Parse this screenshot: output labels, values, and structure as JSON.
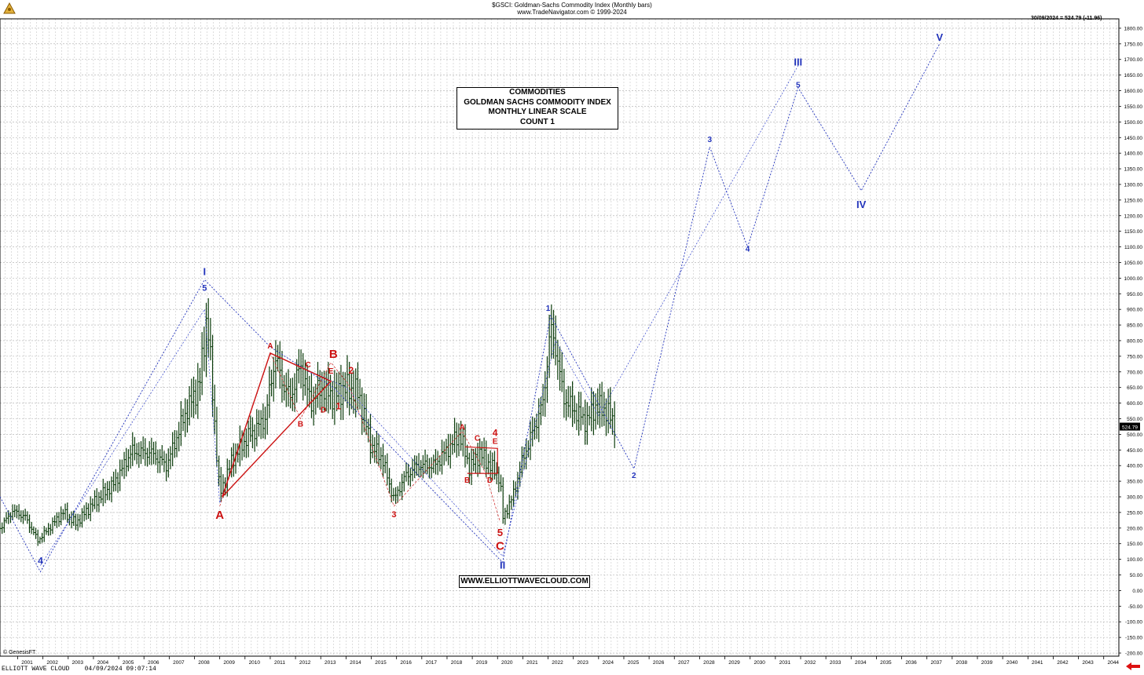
{
  "header": {
    "title": "$GSCI:  Goldman-Sachs Commodity Index  (Monthly bars)",
    "subtitle": "www.TradeNavigator.com © 1999-2024",
    "last_readout": "30/09/2024 = 524.79 (-11.96)"
  },
  "infobox": {
    "lines": [
      "COMMODITIES",
      "GOLDMAN SACHS COMMODITY INDEX",
      "MONTHLY LINEAR SCALE",
      "COUNT 1"
    ]
  },
  "url_box": "WWW.ELLIOTTWAVECLOUD.COM",
  "footer": {
    "left": "ELLIOTT WAVE CLOUD    04/09/2024 09:07:14",
    "credit": "© GenesisFT"
  },
  "chart_data": {
    "type": "ohlc",
    "y_ticks": [
      1800,
      1750,
      1700,
      1650,
      1600,
      1550,
      1500,
      1450,
      1400,
      1350,
      1300,
      1250,
      1200,
      1150,
      1100,
      1050,
      1000,
      950,
      900,
      850,
      800,
      750,
      700,
      650,
      600,
      550,
      500,
      450,
      400,
      350,
      300,
      250,
      200,
      150,
      100,
      50,
      0,
      -50,
      -100,
      -150,
      -200
    ],
    "y_tick_labels": [
      "1800.00",
      "1750.00",
      "1700.00",
      "1650.00",
      "1600.00",
      "1550.00",
      "1500.00",
      "1450.00",
      "1400.00",
      "1350.00",
      "1300.00",
      "1250.00",
      "1200.00",
      "1150.00",
      "1100.00",
      "1050.00",
      "1000.00",
      "950.00",
      "900.00",
      "850.00",
      "800.00",
      "750.00",
      "700.00",
      "650.00",
      "600.00",
      "550.00",
      "500.00",
      "450.00",
      "400.00",
      "350.00",
      "300.00",
      "250.00",
      "200.00",
      "150.00",
      "100.00",
      "50.00",
      "0.00",
      "-50.00",
      "-100.00",
      "-150.00",
      "-200.00"
    ],
    "ylim": [
      -210,
      1830
    ],
    "xlim": [
      2000.3,
      2044.6
    ],
    "x_years": [
      "2001",
      "2002",
      "2003",
      "2004",
      "2005",
      "2006",
      "2007",
      "2008",
      "2009",
      "2010",
      "2011",
      "2012",
      "2013",
      "2014",
      "2015",
      "2016",
      "2017",
      "2018",
      "2019",
      "2020",
      "2021",
      "2022",
      "2023",
      "2024",
      "2025",
      "2026",
      "2027",
      "2028",
      "2029",
      "2030",
      "2031",
      "2032",
      "2033",
      "2034",
      "2035",
      "2036",
      "2037",
      "2038",
      "2039",
      "2040",
      "2041",
      "2042",
      "2043",
      "2044"
    ],
    "price_path": [
      [
        2000.3,
        200
      ],
      [
        2000.8,
        255
      ],
      [
        2001.3,
        235
      ],
      [
        2001.8,
        160
      ],
      [
        2002.3,
        205
      ],
      [
        2002.8,
        250
      ],
      [
        2003.3,
        215
      ],
      [
        2004.0,
        280
      ],
      [
        2004.8,
        340
      ],
      [
        2005.5,
        445
      ],
      [
        2006.3,
        440
      ],
      [
        2006.9,
        400
      ],
      [
        2007.6,
        560
      ],
      [
        2008.2,
        660
      ],
      [
        2008.5,
        885
      ],
      [
        2008.9,
        420
      ],
      [
        2009.0,
        305
      ],
      [
        2009.5,
        420
      ],
      [
        2010.0,
        480
      ],
      [
        2010.8,
        550
      ],
      [
        2011.2,
        750
      ],
      [
        2011.5,
        660
      ],
      [
        2011.8,
        620
      ],
      [
        2012.2,
        720
      ],
      [
        2012.6,
        600
      ],
      [
        2013.0,
        650
      ],
      [
        2013.5,
        620
      ],
      [
        2014.0,
        650
      ],
      [
        2014.5,
        630
      ],
      [
        2015.0,
        460
      ],
      [
        2015.4,
        430
      ],
      [
        2015.9,
        290
      ],
      [
        2016.3,
        360
      ],
      [
        2016.8,
        400
      ],
      [
        2017.5,
        400
      ],
      [
        2018.0,
        450
      ],
      [
        2018.5,
        500
      ],
      [
        2018.9,
        390
      ],
      [
        2019.3,
        440
      ],
      [
        2019.8,
        390
      ],
      [
        2020.1,
        360
      ],
      [
        2020.2,
        230
      ],
      [
        2020.6,
        300
      ],
      [
        2021.0,
        420
      ],
      [
        2021.4,
        510
      ],
      [
        2021.8,
        600
      ],
      [
        2022.1,
        840
      ],
      [
        2022.3,
        780
      ],
      [
        2022.6,
        620
      ],
      [
        2023.0,
        580
      ],
      [
        2023.5,
        540
      ],
      [
        2023.9,
        590
      ],
      [
        2024.3,
        575
      ],
      [
        2024.7,
        525
      ]
    ],
    "last_price": 524.79,
    "last_price_label": "524.79",
    "projection_blue": [
      [
        2000.3,
        300
      ],
      [
        2001.9,
        60
      ],
      [
        2008.4,
        995
      ],
      [
        2011.0,
        780
      ],
      [
        2013.5,
        650
      ],
      [
        2020.2,
        90
      ],
      [
        2022.1,
        880
      ],
      [
        2025.4,
        390
      ],
      [
        2028.4,
        1420
      ],
      [
        2029.9,
        1100
      ],
      [
        2031.9,
        1610
      ],
      [
        2034.4,
        1280
      ],
      [
        2037.5,
        1750
      ]
    ],
    "projection_blue_2": [
      [
        2001.9,
        80
      ],
      [
        2008.4,
        900
      ],
      [
        2009.0,
        280
      ],
      [
        2011.0,
        760
      ],
      [
        2014.0,
        650
      ],
      [
        2020.2,
        110
      ],
      [
        2022.3,
        800
      ],
      [
        2024.0,
        560
      ],
      [
        2031.9,
        1680
      ]
    ],
    "projection_red": [
      [
        2009.0,
        270
      ],
      [
        2011.0,
        760
      ],
      [
        2012.2,
        550
      ],
      [
        2013.4,
        730
      ],
      [
        2014.1,
        660
      ],
      [
        2015.9,
        270
      ],
      [
        2018.6,
        510
      ],
      [
        2019.5,
        380
      ],
      [
        2020.1,
        220
      ]
    ],
    "red_triangle": [
      [
        2009.1,
        300
      ],
      [
        2011.0,
        760
      ],
      [
        2013.4,
        670
      ],
      [
        2009.1,
        300
      ]
    ],
    "red_triangle_2": [
      [
        2018.7,
        460
      ],
      [
        2020.0,
        455
      ],
      [
        2020.0,
        375
      ],
      [
        2018.8,
        375
      ]
    ],
    "labels": [
      {
        "text": "I",
        "x": 2008.4,
        "y": 1010,
        "color": "#2233bb",
        "size": 13
      },
      {
        "text": "5",
        "x": 2008.4,
        "y": 960,
        "color": "#2233bb",
        "size": 11
      },
      {
        "text": "4",
        "x": 2001.9,
        "y": 85,
        "color": "#2233bb",
        "size": 12
      },
      {
        "text": "A",
        "x": 2009.0,
        "y": 230,
        "color": "#cc1111",
        "size": 15
      },
      {
        "text": "A",
        "x": 2011.0,
        "y": 775,
        "color": "#cc1111",
        "size": 10
      },
      {
        "text": "B",
        "x": 2012.2,
        "y": 525,
        "color": "#cc1111",
        "size": 10
      },
      {
        "text": "C",
        "x": 2012.5,
        "y": 715,
        "color": "#cc1111",
        "size": 10
      },
      {
        "text": "D",
        "x": 2013.1,
        "y": 570,
        "color": "#cc1111",
        "size": 10
      },
      {
        "text": "E",
        "x": 2013.4,
        "y": 695,
        "color": "#cc1111",
        "size": 10
      },
      {
        "text": "B",
        "x": 2013.5,
        "y": 745,
        "color": "#cc1111",
        "size": 15
      },
      {
        "text": "1",
        "x": 2013.7,
        "y": 580,
        "color": "#cc1111",
        "size": 12
      },
      {
        "text": "2",
        "x": 2014.2,
        "y": 695,
        "color": "#cc1111",
        "size": 12
      },
      {
        "text": "3",
        "x": 2015.9,
        "y": 235,
        "color": "#cc1111",
        "size": 11
      },
      {
        "text": "A",
        "x": 2018.6,
        "y": 515,
        "color": "#cc1111",
        "size": 10
      },
      {
        "text": "B",
        "x": 2018.8,
        "y": 345,
        "color": "#cc1111",
        "size": 10
      },
      {
        "text": "C",
        "x": 2019.2,
        "y": 480,
        "color": "#cc1111",
        "size": 10
      },
      {
        "text": "D",
        "x": 2019.7,
        "y": 345,
        "color": "#cc1111",
        "size": 10
      },
      {
        "text": "E",
        "x": 2019.9,
        "y": 470,
        "color": "#cc1111",
        "size": 10
      },
      {
        "text": "4",
        "x": 2019.9,
        "y": 495,
        "color": "#cc1111",
        "size": 12
      },
      {
        "text": "5",
        "x": 2020.1,
        "y": 175,
        "color": "#cc1111",
        "size": 13
      },
      {
        "text": "C",
        "x": 2020.1,
        "y": 130,
        "color": "#cc1111",
        "size": 15
      },
      {
        "text": "II",
        "x": 2020.2,
        "y": 70,
        "color": "#2233bb",
        "size": 13
      },
      {
        "text": "1",
        "x": 2022.0,
        "y": 895,
        "color": "#2233bb",
        "size": 10
      },
      {
        "text": "2",
        "x": 2025.4,
        "y": 360,
        "color": "#2233bb",
        "size": 10
      },
      {
        "text": "3",
        "x": 2028.4,
        "y": 1435,
        "color": "#2233bb",
        "size": 10
      },
      {
        "text": "4",
        "x": 2029.9,
        "y": 1085,
        "color": "#2233bb",
        "size": 10
      },
      {
        "text": "5",
        "x": 2031.9,
        "y": 1610,
        "color": "#2233bb",
        "size": 10
      },
      {
        "text": "III",
        "x": 2031.9,
        "y": 1680,
        "color": "#2233bb",
        "size": 13
      },
      {
        "text": "IV",
        "x": 2034.4,
        "y": 1225,
        "color": "#2233bb",
        "size": 13
      },
      {
        "text": "V",
        "x": 2037.5,
        "y": 1760,
        "color": "#2233bb",
        "size": 13
      }
    ]
  }
}
